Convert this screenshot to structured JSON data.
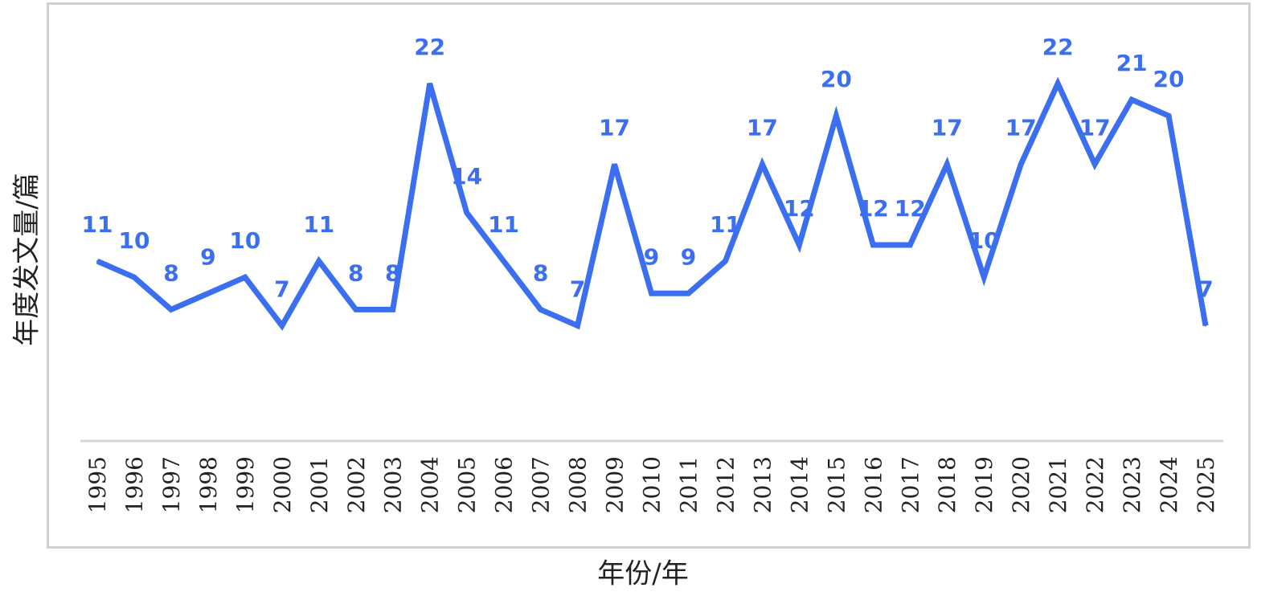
{
  "chart_data": {
    "type": "line",
    "title": "",
    "xlabel": "年份/年",
    "ylabel": "年度发文量/篇",
    "ylim": [
      0,
      22
    ],
    "grid": false,
    "legend": "none",
    "categories": [
      "1995",
      "1996",
      "1997",
      "1998",
      "1999",
      "2000",
      "2001",
      "2002",
      "2003",
      "2004",
      "2005",
      "2006",
      "2007",
      "2008",
      "2009",
      "2010",
      "2011",
      "2012",
      "2013",
      "2014",
      "2015",
      "2016",
      "2017",
      "2018",
      "2019",
      "2020",
      "2021",
      "2022",
      "2023",
      "2024",
      "2025"
    ],
    "series": [
      {
        "values": [
          11,
          10,
          8,
          9,
          10,
          7,
          11,
          8,
          8,
          22,
          14,
          11,
          8,
          7,
          17,
          9,
          9,
          11,
          17,
          12,
          20,
          12,
          12,
          17,
          10,
          17,
          22,
          17,
          21,
          20,
          7
        ]
      }
    ],
    "colors": {
      "line": "#3b6ff0",
      "label": "#3b6ff0",
      "drop": "#c6d4f6",
      "axis": "#d4d4d4",
      "frame": "#d0d0d0"
    }
  }
}
